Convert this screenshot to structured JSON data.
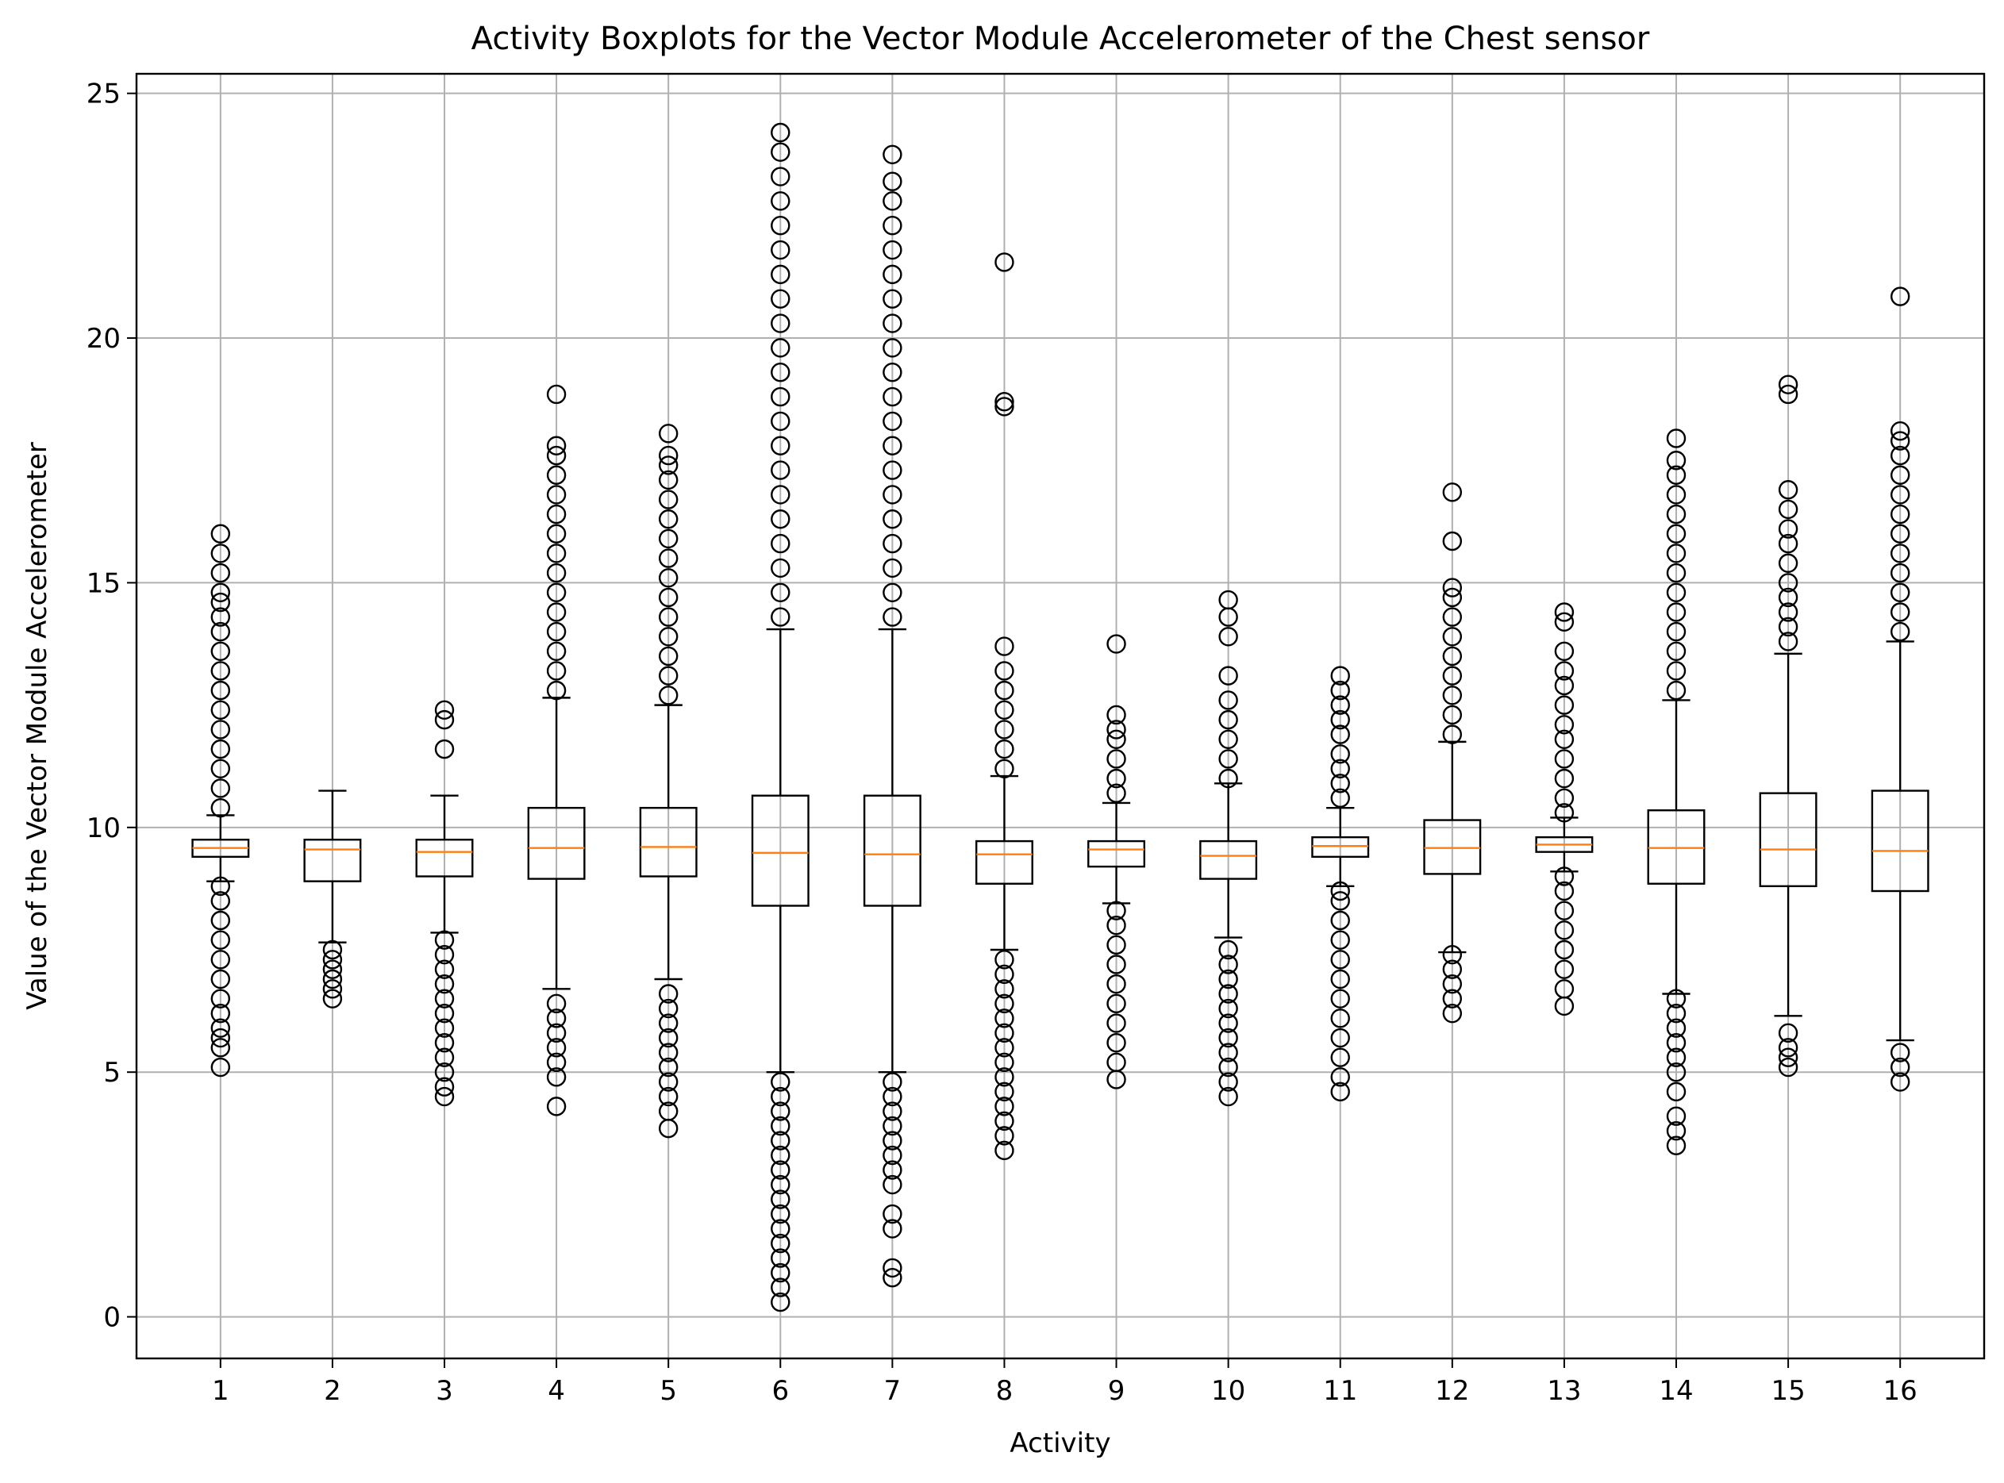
{
  "chart_data": {
    "type": "boxplot",
    "title": "Activity Boxplots for the Vector Module Accelerometer of the Chest sensor",
    "xlabel": "Activity",
    "ylabel": "Value of the Vector Module Accelerometer",
    "ylim": [
      -0.85,
      25.4
    ],
    "yticks": [
      0,
      5,
      10,
      15,
      20,
      25
    ],
    "grid": true,
    "categories": [
      "1",
      "2",
      "3",
      "4",
      "5",
      "6",
      "7",
      "8",
      "9",
      "10",
      "11",
      "12",
      "13",
      "14",
      "15",
      "16"
    ],
    "box_color": "#000000",
    "median_color": "#ff7f0e",
    "grid_color": "#b0b0b0",
    "boxes": [
      {
        "label": "1",
        "whislo": 8.9,
        "q1": 9.4,
        "med": 9.58,
        "q3": 9.75,
        "whishi": 10.25,
        "fliers": [
          5.1,
          5.5,
          5.7,
          5.9,
          6.2,
          6.5,
          6.9,
          7.3,
          7.7,
          8.1,
          8.5,
          8.8,
          10.4,
          10.8,
          11.2,
          11.6,
          12.0,
          12.4,
          12.8,
          13.2,
          13.6,
          14.0,
          14.3,
          14.6,
          14.8,
          15.2,
          15.6,
          16.0
        ]
      },
      {
        "label": "2",
        "whislo": 7.65,
        "q1": 8.9,
        "med": 9.55,
        "q3": 9.75,
        "whishi": 10.75,
        "fliers": [
          6.5,
          6.7,
          6.9,
          7.1,
          7.3,
          7.5
        ]
      },
      {
        "label": "3",
        "whislo": 7.85,
        "q1": 9.0,
        "med": 9.5,
        "q3": 9.75,
        "whishi": 10.65,
        "fliers": [
          4.5,
          4.7,
          5.0,
          5.3,
          5.6,
          5.9,
          6.2,
          6.5,
          6.8,
          7.1,
          7.4,
          7.7,
          11.6,
          12.2,
          12.4
        ]
      },
      {
        "label": "4",
        "whislo": 6.7,
        "q1": 8.95,
        "med": 9.58,
        "q3": 10.4,
        "whishi": 12.65,
        "fliers": [
          4.3,
          4.9,
          5.2,
          5.5,
          5.8,
          6.1,
          6.4,
          12.8,
          13.2,
          13.6,
          14.0,
          14.4,
          14.8,
          15.2,
          15.6,
          16.0,
          16.4,
          16.8,
          17.2,
          17.6,
          17.8,
          18.85
        ]
      },
      {
        "label": "5",
        "whislo": 6.9,
        "q1": 9.0,
        "med": 9.6,
        "q3": 10.4,
        "whishi": 12.5,
        "fliers": [
          3.85,
          4.2,
          4.5,
          4.8,
          5.1,
          5.4,
          5.7,
          6.0,
          6.3,
          6.6,
          12.7,
          13.1,
          13.5,
          13.9,
          14.3,
          14.7,
          15.1,
          15.5,
          15.9,
          16.3,
          16.7,
          17.1,
          17.4,
          17.6,
          18.05
        ]
      },
      {
        "label": "6",
        "whislo": 5.0,
        "q1": 8.4,
        "med": 9.48,
        "q3": 10.65,
        "whishi": 14.05,
        "fliers": [
          0.3,
          0.6,
          0.9,
          1.2,
          1.5,
          1.8,
          2.1,
          2.4,
          2.7,
          3.0,
          3.3,
          3.6,
          3.9,
          4.2,
          4.5,
          4.8,
          14.3,
          14.8,
          15.3,
          15.8,
          16.3,
          16.8,
          17.3,
          17.8,
          18.3,
          18.8,
          19.3,
          19.8,
          20.3,
          20.8,
          21.3,
          21.8,
          22.3,
          22.8,
          23.3,
          23.8,
          24.2
        ]
      },
      {
        "label": "7",
        "whislo": 5.0,
        "q1": 8.4,
        "med": 9.45,
        "q3": 10.65,
        "whishi": 14.05,
        "fliers": [
          0.8,
          1.0,
          1.8,
          2.1,
          2.7,
          3.0,
          3.3,
          3.6,
          3.9,
          4.2,
          4.5,
          4.8,
          14.3,
          14.8,
          15.3,
          15.8,
          16.3,
          16.8,
          17.3,
          17.8,
          18.3,
          18.8,
          19.3,
          19.8,
          20.3,
          20.8,
          21.3,
          21.8,
          22.3,
          22.8,
          23.2,
          23.75
        ]
      },
      {
        "label": "8",
        "whislo": 7.5,
        "q1": 8.85,
        "med": 9.45,
        "q3": 9.72,
        "whishi": 11.05,
        "fliers": [
          3.4,
          3.7,
          4.0,
          4.3,
          4.6,
          4.9,
          5.2,
          5.5,
          5.8,
          6.1,
          6.4,
          6.7,
          7.0,
          7.3,
          11.2,
          11.6,
          12.0,
          12.4,
          12.8,
          13.2,
          13.7,
          18.6,
          18.7,
          21.55
        ]
      },
      {
        "label": "9",
        "whislo": 8.45,
        "q1": 9.2,
        "med": 9.55,
        "q3": 9.72,
        "whishi": 10.5,
        "fliers": [
          4.85,
          5.2,
          5.6,
          6.0,
          6.4,
          6.8,
          7.2,
          7.6,
          8.0,
          8.3,
          10.7,
          11.0,
          11.4,
          11.8,
          12.0,
          12.3,
          13.75
        ]
      },
      {
        "label": "10",
        "whislo": 7.75,
        "q1": 8.95,
        "med": 9.42,
        "q3": 9.72,
        "whishi": 10.9,
        "fliers": [
          4.5,
          4.8,
          5.1,
          5.4,
          5.7,
          6.0,
          6.3,
          6.6,
          6.9,
          7.2,
          7.5,
          11.0,
          11.4,
          11.8,
          12.2,
          12.6,
          13.1,
          13.9,
          14.3,
          14.65
        ]
      },
      {
        "label": "11",
        "whislo": 8.8,
        "q1": 9.4,
        "med": 9.62,
        "q3": 9.8,
        "whishi": 10.4,
        "fliers": [
          4.6,
          4.9,
          5.3,
          5.7,
          6.1,
          6.5,
          6.9,
          7.3,
          7.7,
          8.1,
          8.5,
          8.7,
          10.6,
          10.9,
          11.2,
          11.5,
          11.9,
          12.2,
          12.5,
          12.8,
          13.1
        ]
      },
      {
        "label": "12",
        "whislo": 7.45,
        "q1": 9.05,
        "med": 9.58,
        "q3": 10.15,
        "whishi": 11.75,
        "fliers": [
          6.2,
          6.5,
          6.8,
          7.1,
          7.4,
          11.9,
          12.3,
          12.7,
          13.1,
          13.5,
          13.9,
          14.3,
          14.7,
          14.9,
          15.85,
          16.85
        ]
      },
      {
        "label": "13",
        "whislo": 9.1,
        "q1": 9.5,
        "med": 9.65,
        "q3": 9.8,
        "whishi": 10.2,
        "fliers": [
          6.35,
          6.7,
          7.1,
          7.5,
          7.9,
          8.3,
          8.7,
          9.0,
          10.3,
          10.6,
          11.0,
          11.4,
          11.8,
          12.1,
          12.5,
          12.9,
          13.2,
          13.6,
          14.2,
          14.4
        ]
      },
      {
        "label": "14",
        "whislo": 6.6,
        "q1": 8.85,
        "med": 9.58,
        "q3": 10.35,
        "whishi": 12.6,
        "fliers": [
          3.5,
          3.8,
          4.1,
          4.6,
          5.0,
          5.3,
          5.6,
          5.9,
          6.2,
          6.5,
          12.8,
          13.2,
          13.6,
          14.0,
          14.4,
          14.8,
          15.2,
          15.6,
          16.0,
          16.4,
          16.8,
          17.2,
          17.5,
          17.95
        ]
      },
      {
        "label": "15",
        "whislo": 6.15,
        "q1": 8.8,
        "med": 9.55,
        "q3": 10.7,
        "whishi": 13.55,
        "fliers": [
          5.1,
          5.3,
          5.5,
          5.8,
          13.8,
          14.1,
          14.4,
          14.7,
          15.0,
          15.4,
          15.8,
          16.1,
          16.5,
          16.9,
          18.85,
          19.05
        ]
      },
      {
        "label": "16",
        "whislo": 5.65,
        "q1": 8.7,
        "med": 9.52,
        "q3": 10.75,
        "whishi": 13.8,
        "fliers": [
          4.8,
          5.1,
          5.4,
          14.0,
          14.4,
          14.8,
          15.2,
          15.6,
          16.0,
          16.4,
          16.8,
          17.2,
          17.6,
          17.9,
          18.1,
          20.85
        ]
      }
    ]
  }
}
